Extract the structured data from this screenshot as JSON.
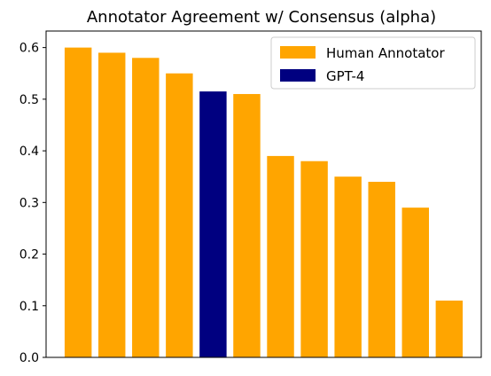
{
  "chart_data": {
    "type": "bar",
    "title": "Annotator Agreement w/ Consensus (alpha)",
    "xlabel": "",
    "ylabel": "",
    "ylim": [
      0,
      0.632
    ],
    "yticks": [
      0.0,
      0.1,
      0.2,
      0.3,
      0.4,
      0.5,
      0.6
    ],
    "ytick_labels": [
      "0.0",
      "0.1",
      "0.2",
      "0.3",
      "0.4",
      "0.5",
      "0.6"
    ],
    "grid": false,
    "legend_position": "top-right",
    "colors": {
      "Human Annotator": "#FFA500",
      "GPT-4": "#000080"
    },
    "legend": [
      {
        "label": "Human Annotator",
        "color": "#FFA500"
      },
      {
        "label": "GPT-4",
        "color": "#000080"
      }
    ],
    "bars": [
      {
        "value": 0.6,
        "group": "Human Annotator"
      },
      {
        "value": 0.59,
        "group": "Human Annotator"
      },
      {
        "value": 0.58,
        "group": "Human Annotator"
      },
      {
        "value": 0.55,
        "group": "Human Annotator"
      },
      {
        "value": 0.515,
        "group": "GPT-4"
      },
      {
        "value": 0.51,
        "group": "Human Annotator"
      },
      {
        "value": 0.39,
        "group": "Human Annotator"
      },
      {
        "value": 0.38,
        "group": "Human Annotator"
      },
      {
        "value": 0.35,
        "group": "Human Annotator"
      },
      {
        "value": 0.34,
        "group": "Human Annotator"
      },
      {
        "value": 0.29,
        "group": "Human Annotator"
      },
      {
        "value": 0.11,
        "group": "Human Annotator"
      }
    ]
  }
}
